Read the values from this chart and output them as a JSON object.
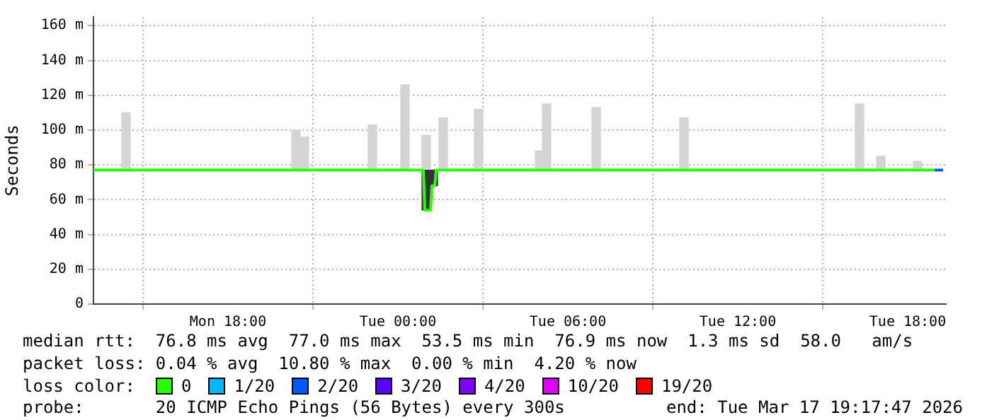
{
  "chart_data": {
    "type": "line",
    "ylabel": "Seconds",
    "xlim": [
      "2026-03-16T13:15",
      "2026-03-17T19:21"
    ],
    "xticks": [
      {
        "value": "2026-03-16T18:00",
        "label": "Mon 18:00"
      },
      {
        "value": "2026-03-17T00:00",
        "label": "Tue 00:00"
      },
      {
        "value": "2026-03-17T06:00",
        "label": "Tue 06:00"
      },
      {
        "value": "2026-03-17T12:00",
        "label": "Tue 12:00"
      },
      {
        "value": "2026-03-17T18:00",
        "label": "Tue 18:00"
      }
    ],
    "ylim": [
      0,
      165
    ],
    "yticks": [
      0,
      {
        "value": 20,
        "label": "20 m"
      },
      {
        "value": 40,
        "label": "40 m"
      },
      {
        "value": 60,
        "label": "60 m"
      },
      {
        "value": 80,
        "label": "80 m"
      },
      {
        "value": 100,
        "label": "100 m"
      },
      {
        "value": 120,
        "label": "120 m"
      },
      {
        "value": 140,
        "label": "140 m"
      },
      {
        "value": 160,
        "label": "160 m"
      }
    ],
    "grid": true,
    "legend": "bottom",
    "legend_title": "loss color:",
    "series": [
      {
        "type": "bar",
        "color": "#d4d4d4",
        "x": [
          "2026-03-16T14:24",
          "2026-03-16T20:24",
          "2026-03-16T20:42",
          "2026-03-16T23:06",
          "2026-03-17T00:15",
          "2026-03-17T01:00",
          "2026-03-17T01:36",
          "2026-03-17T02:51",
          "2026-03-17T05:00",
          "2026-03-17T05:15",
          "2026-03-17T07:00",
          "2026-03-17T10:06",
          "2026-03-17T16:18",
          "2026-03-17T17:03",
          "2026-03-17T18:21"
        ],
        "base": [
          78,
          78,
          78,
          78,
          78,
          78,
          78,
          78,
          78,
          78,
          78,
          78,
          78,
          78,
          78
        ],
        "values": [
          32,
          22,
          18,
          25,
          48,
          19,
          29,
          34,
          10,
          37,
          35,
          29,
          37,
          7,
          4
        ]
      },
      {
        "type": "bar",
        "color": "#333333",
        "x": [
          "2026-03-17T01:00",
          "2026-03-17T01:15"
        ],
        "base": [
          54,
          68
        ],
        "values": [
          23,
          9
        ]
      },
      {
        "name": "0",
        "color": "#26ff00",
        "x": [
          "2026-03-16T13:15",
          "2026-03-17T00:54",
          "2026-03-17T00:57",
          "2026-03-17T01:09",
          "2026-03-17T01:12",
          "2026-03-17T01:18",
          "2026-03-17T01:21",
          "2026-03-17T18:57"
        ],
        "values": [
          77,
          77,
          54,
          54,
          68,
          68,
          77,
          77
        ]
      },
      {
        "name": "1/20",
        "color": "#00b8ff"
      },
      {
        "name": "2/20",
        "color": "#0059ff",
        "x": [
          "2026-03-17T18:57",
          "2026-03-17T19:15"
        ],
        "values": [
          77,
          77
        ]
      },
      {
        "name": "3/20",
        "color": "#5e00ff"
      },
      {
        "name": "4/20",
        "color": "#7e00ff"
      },
      {
        "name": "10/20",
        "color": "#dd00ff"
      },
      {
        "name": "19/20",
        "color": "#ff0000"
      }
    ],
    "annotations": [
      "median rtt:  76.8 ms avg  77.0 ms max  53.5 ms min  76.9 ms now  1.3 ms sd  58.0   am/s",
      "packet loss: 0.04 % avg  10.80 % max  0.00 % min  4.20 % now",
      "probe:       20 ICMP Echo Pings (56 Bytes) every 300s",
      "end: Tue Mar 17 19:17:47 2026"
    ]
  }
}
